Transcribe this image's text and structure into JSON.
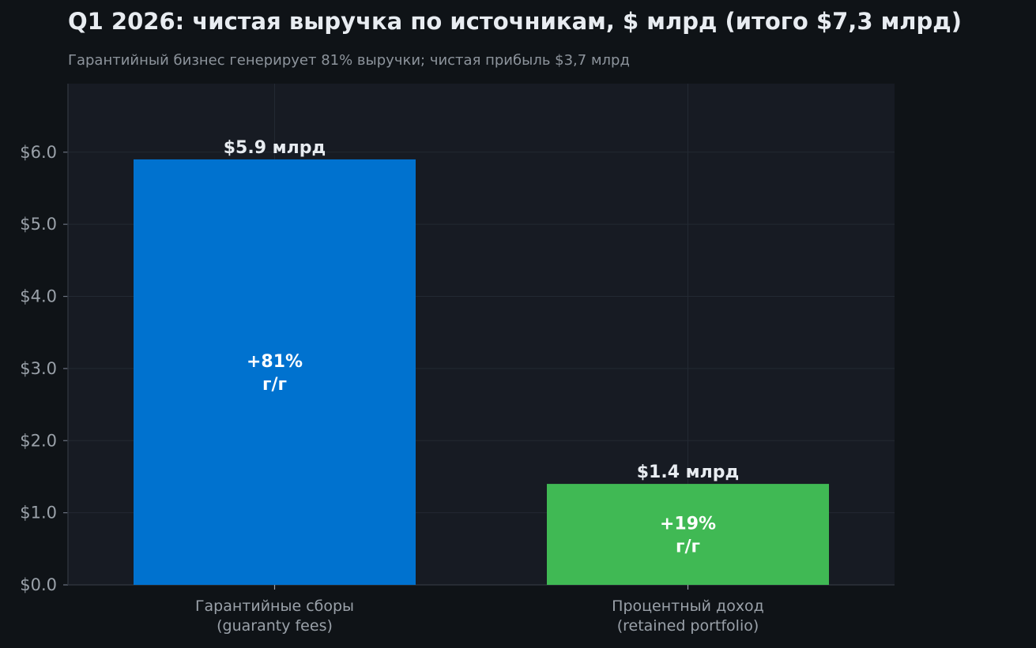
{
  "chart_data": {
    "type": "bar",
    "title": "Q1 2026: чистая выручка по источникам, $ млрд (итого $7,3 млрд)",
    "subtitle": "Гарантийный бизнес генерирует 81% выручки; чистая прибыль $3,7 млрд",
    "categories": [
      [
        "Гарантийные сборы",
        "(guaranty fees)"
      ],
      [
        "Процентный доход",
        "(retained portfolio)"
      ]
    ],
    "values": [
      5.9,
      1.4
    ],
    "value_labels": [
      "$5.9 млрд",
      "$1.4 млрд"
    ],
    "inner_labels": [
      [
        "+81%",
        "г/г"
      ],
      [
        "+19%",
        "г/г"
      ]
    ],
    "colors": [
      "#0072cf",
      "#40b954"
    ],
    "ylim": [
      0,
      6.95
    ],
    "yticks": [
      0,
      1,
      2,
      3,
      4,
      5,
      6
    ],
    "ytick_labels": [
      "$0.0",
      "$1.0",
      "$2.0",
      "$3.0",
      "$4.0",
      "$5.0",
      "$6.0"
    ],
    "grid": true,
    "xlabel": "",
    "ylabel": ""
  }
}
